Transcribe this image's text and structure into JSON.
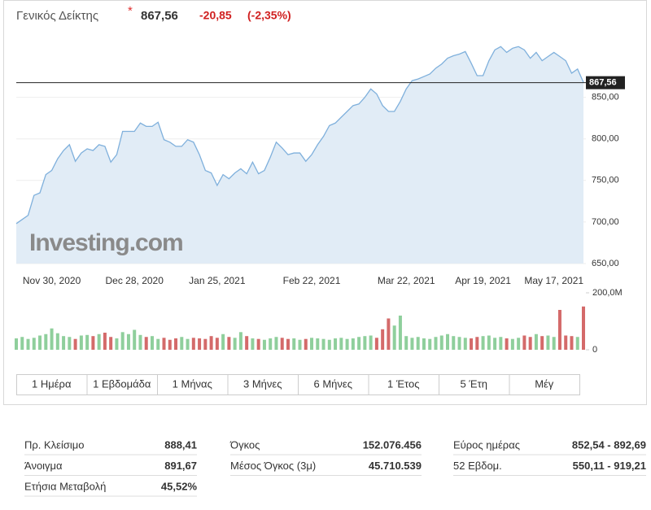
{
  "header": {
    "title": "Γενικός Δείκτης",
    "price": "867,56",
    "change": "-20,85",
    "change_pct": "(-2,35%)"
  },
  "chart_data": {
    "type": "line",
    "watermark": "Investing.com",
    "color": "#7fb0dc",
    "area_color": "#e1ecf6",
    "categories": [
      null,
      null,
      null,
      null,
      null,
      null,
      "Nov 30, 2020",
      null,
      null,
      null,
      null,
      null,
      null,
      null,
      null,
      null,
      null,
      null,
      null,
      null,
      "Dec 28, 2020",
      null,
      null,
      null,
      null,
      null,
      null,
      null,
      null,
      null,
      null,
      null,
      null,
      null,
      "Jan 25, 2021",
      null,
      null,
      null,
      null,
      null,
      null,
      null,
      null,
      null,
      null,
      null,
      null,
      null,
      null,
      null,
      "Feb 22, 2021",
      null,
      null,
      null,
      null,
      null,
      null,
      null,
      null,
      null,
      null,
      null,
      null,
      null,
      null,
      null,
      "Mar 22, 2021",
      null,
      null,
      null,
      null,
      null,
      null,
      null,
      null,
      null,
      null,
      null,
      null,
      "Apr 19, 2021",
      null,
      null,
      null,
      null,
      null,
      null,
      null,
      null,
      null,
      null,
      null,
      "May 17, 2021",
      null,
      null,
      null,
      null,
      null
    ],
    "values": [
      698,
      703,
      708,
      732,
      735,
      757,
      762,
      776,
      786,
      793,
      773,
      783,
      788,
      786,
      793,
      791,
      772,
      781,
      809,
      809,
      809,
      819,
      815,
      815,
      820,
      799,
      796,
      791,
      791,
      799,
      796,
      781,
      762,
      759,
      744,
      757,
      752,
      759,
      764,
      758,
      772,
      758,
      762,
      778,
      796,
      789,
      781,
      783,
      783,
      773,
      781,
      793,
      803,
      816,
      819,
      826,
      833,
      840,
      842,
      850,
      860,
      854,
      840,
      833,
      833,
      845,
      860,
      870,
      872,
      875,
      878,
      885,
      890,
      897,
      900,
      902,
      905,
      891,
      876,
      876,
      894,
      907,
      911,
      904,
      909,
      911,
      907,
      897,
      904,
      894,
      899,
      904,
      899,
      894,
      879,
      884,
      868
    ],
    "ylim": [
      650,
      923
    ],
    "yticks": [
      {
        "value": 650,
        "label": "650,00"
      },
      {
        "value": 700,
        "label": "700,00"
      },
      {
        "value": 750,
        "label": "750,00"
      },
      {
        "value": 800,
        "label": "800,00"
      },
      {
        "value": 850,
        "label": "850,00"
      }
    ],
    "last_value": {
      "value": 867.56,
      "label": "867,56"
    },
    "volume": {
      "values": [
        40,
        45,
        38,
        42,
        50,
        55,
        75,
        58,
        48,
        45,
        38,
        50,
        52,
        48,
        55,
        60,
        45,
        40,
        62,
        55,
        70,
        52,
        45,
        48,
        38,
        42,
        35,
        40,
        45,
        38,
        42,
        40,
        38,
        48,
        42,
        55,
        45,
        42,
        62,
        48,
        40,
        38,
        35,
        40,
        45,
        42,
        38,
        40,
        35,
        38,
        42,
        40,
        38,
        35,
        40,
        42,
        38,
        40,
        45,
        48,
        50,
        42,
        72,
        110,
        85,
        120,
        48,
        42,
        45,
        40,
        38,
        45,
        50,
        55,
        48,
        45,
        42,
        40,
        45,
        48,
        50,
        42,
        45,
        40,
        38,
        42,
        50,
        45,
        55,
        48,
        50,
        45,
        140,
        50,
        48,
        45,
        152
      ],
      "up_color": "#8fcf9c",
      "down_color": "#d46a6a",
      "ylim": [
        0,
        200
      ],
      "yticks": [
        {
          "value": 200,
          "label": "200,0M"
        },
        0
      ]
    }
  },
  "periods": [
    "1 Ημέρα",
    "1 Εβδομάδα",
    "1 Μήνας",
    "3 Μήνες",
    "6 Μήνες",
    "1 Έτος",
    "5 Έτη",
    "Μέγ"
  ],
  "stats": [
    [
      {
        "label": "Πρ. Κλείσιμο",
        "value": "888,41"
      },
      {
        "label": "Άνοιγμα",
        "value": "891,67"
      },
      {
        "label": "Ετήσια Μεταβολή",
        "value": "45,52%"
      }
    ],
    [
      {
        "label": "Όγκος",
        "value": "152.076.456"
      },
      {
        "label": "Μέσος Όγκος (3μ)",
        "value": "45.710.539"
      }
    ],
    [
      {
        "label": "Εύρος ημέρας",
        "value": "852,54 - 892,69"
      },
      {
        "label": "52 Εβδομ.",
        "value": "550,11 - 919,21"
      }
    ]
  ]
}
